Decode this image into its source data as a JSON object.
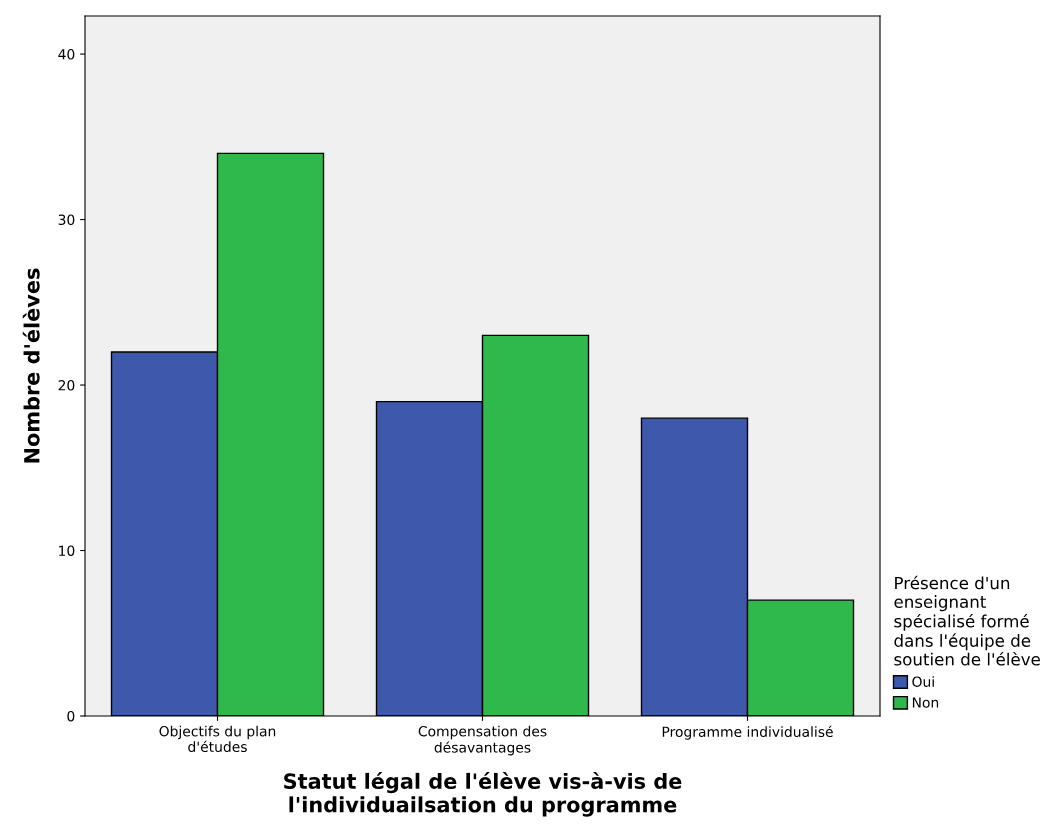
{
  "chart_data": {
    "type": "bar",
    "xlabel": "Statut légal de l'élève vis-à-vis de\nl'individuailsation du programme",
    "ylabel": "Nombre d'élèves",
    "legend_title": "Présence d'un\nenseignant\nspécialisé formé\ndans l'équipe de\nsoutien de l'élève",
    "categories": [
      "Objectifs du plan\nd'études",
      "Compensation des\ndésavantages",
      "Programme individualisé"
    ],
    "series": [
      {
        "name": "Oui",
        "color": "#3e58ac",
        "values": [
          22,
          19,
          18
        ]
      },
      {
        "name": "Non",
        "color": "#2fb84b",
        "values": [
          34,
          23,
          7
        ]
      }
    ],
    "ylim": [
      0,
      42.3
    ],
    "yticks": [
      0,
      10,
      20,
      30,
      40
    ],
    "grid": false,
    "legend": "right"
  }
}
